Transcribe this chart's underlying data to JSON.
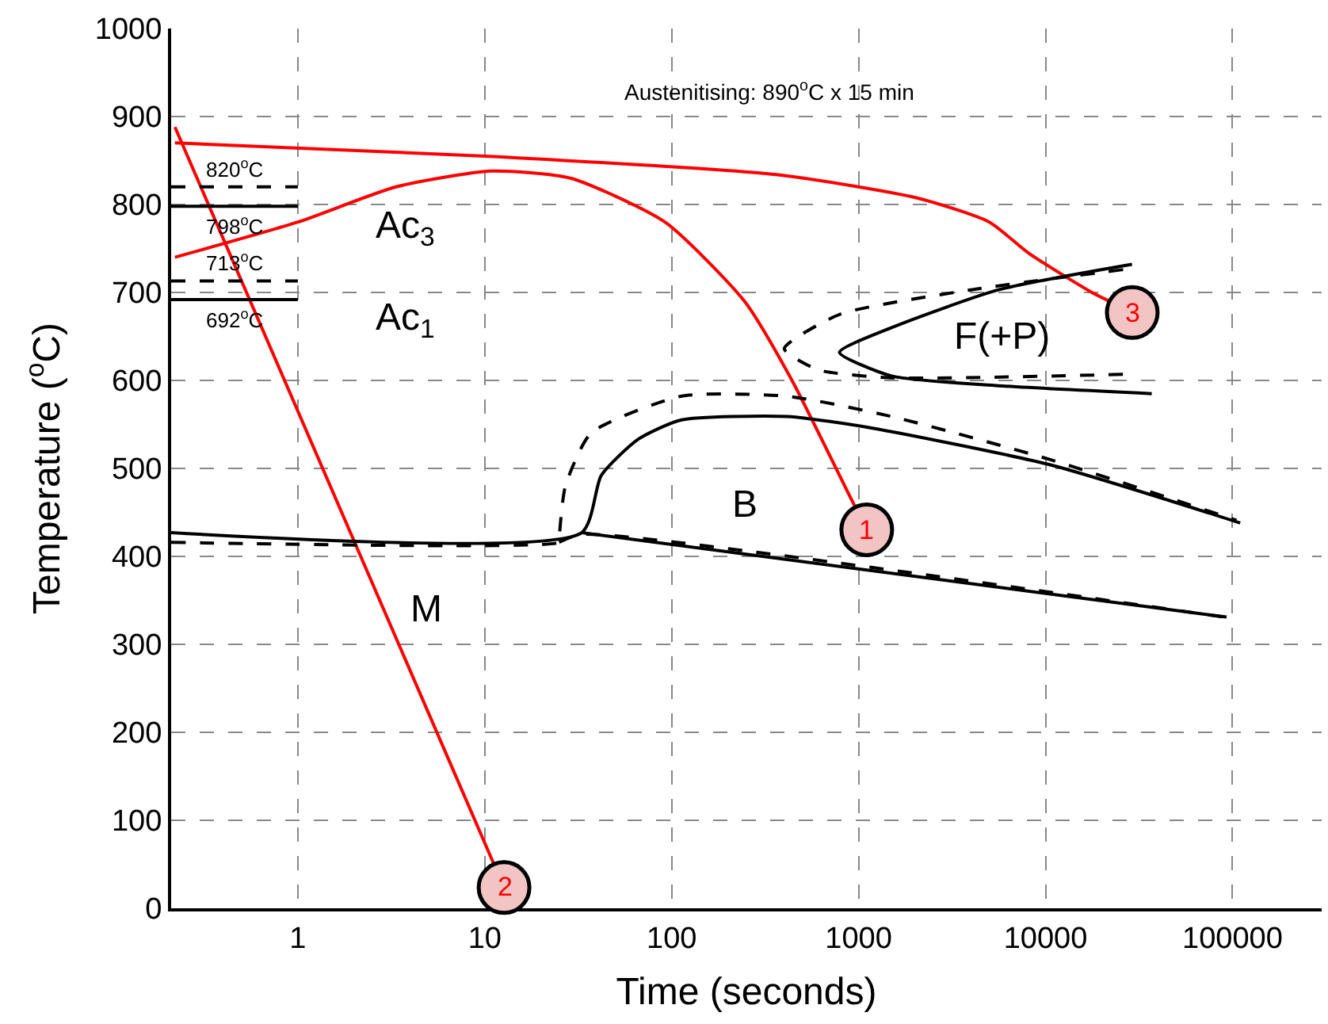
{
  "chart_data": {
    "type": "line",
    "xlabel": "Time (seconds)",
    "ylabel": "Temperature ($^{o}$C)",
    "log": "x",
    "xlim": [
      0.21,
      300000
    ],
    "xticks": [
      1,
      10,
      100,
      1000,
      10000,
      100000
    ],
    "ylim": [
      0,
      1000
    ],
    "yticks": [
      0,
      100,
      200,
      300,
      400,
      500,
      600,
      700,
      800,
      900,
      1000
    ],
    "grid": true,
    "marker": "none",
    "series": [
      {
        "color": "#ff0000",
        "line_style": "solid",
        "x": [
          0.22,
          11.2
        ],
        "values": [
          888,
          50
        ]
      },
      {
        "color": "#ff0000",
        "line_style": "solid",
        "x": [
          0.22,
          10,
          363,
          2090,
          5000,
          8200,
          17700,
          22000
        ],
        "values": [
          870,
          855,
          834,
          807,
          780,
          744,
          700,
          690
        ]
      },
      {
        "color": "#ff0000",
        "line_style": "solid",
        "x": [
          0.22,
          1,
          3.35,
          10.8,
          28.7,
          92,
          245,
          440,
          870,
          960
        ],
        "values": [
          740,
          780,
          820,
          838,
          830,
          780,
          690,
          600,
          474,
          456
        ]
      },
      {
        "color": "#000000",
        "line_style": "dashed",
        "x": [
          0.21,
          1
        ],
        "values": [
          820,
          820
        ]
      },
      {
        "color": "#000000",
        "line_style": "solid",
        "x": [
          0.21,
          1
        ],
        "values": [
          798,
          798
        ]
      },
      {
        "color": "#000000",
        "line_style": "dashed",
        "x": [
          0.21,
          1
        ],
        "values": [
          713,
          713
        ]
      },
      {
        "color": "#000000",
        "line_style": "solid",
        "x": [
          0.21,
          1
        ],
        "values": [
          692,
          692
        ]
      },
      {
        "color": "#000000",
        "line_style": "solid",
        "x": [
          0.21,
          33,
          42,
          66,
          112,
          415,
          1170,
          10600,
          110000
        ],
        "values": [
          427,
          427,
          492,
          533,
          555,
          559,
          546,
          504,
          438
        ]
      },
      {
        "color": "#000000",
        "line_style": "dashed",
        "x": [
          0.21,
          25,
          25,
          27,
          37,
          112,
          415,
          1500,
          10600,
          105000
        ],
        "values": [
          416,
          416,
          420,
          480,
          540,
          582,
          582,
          559,
          510,
          441
        ]
      },
      {
        "color": "#000000",
        "line_style": "solid",
        "x": [
          33,
          93000
        ],
        "values": [
          427,
          331
        ]
      },
      {
        "color": "#000000",
        "line_style": "dashed",
        "x": [
          25,
          33,
          90000
        ],
        "values": [
          416,
          425,
          331
        ]
      },
      {
        "color": "#000000",
        "line_style": "solid",
        "x": [
          29000,
          5600,
          1500,
          790,
          1500,
          5600,
          37000
        ],
        "values": [
          732,
          703,
          660,
          632,
          605,
          594,
          585
        ]
      },
      {
        "color": "#000000",
        "line_style": "dashed",
        "x": [
          26000,
          4000,
          790,
          400,
          610,
          1500,
          26000
        ],
        "values": [
          726,
          703,
          675,
          636,
          612,
          603,
          607
        ]
      }
    ],
    "annotations": [
      "Austenitising: 890$^{o}$C x 15 min",
      {
        "text": "820$^{o}$C",
        "x": 0.46,
        "y": 820
      },
      {
        "text": "798$^{o}$C",
        "x": 0.46,
        "y": 798
      },
      {
        "text": "713$^{o}$C",
        "x": 0.46,
        "y": 713
      },
      {
        "text": "692$^{o}$C",
        "x": 0.46,
        "y": 692
      },
      "Ac$_{3}$",
      "Ac$_{1}$",
      "M",
      "B",
      "F(+P)",
      {
        "text": "1",
        "x": 960,
        "y": 456
      },
      {
        "text": "2",
        "x": 11.2,
        "y": 50
      },
      {
        "text": "3",
        "x": 22000,
        "y": 690
      }
    ]
  }
}
